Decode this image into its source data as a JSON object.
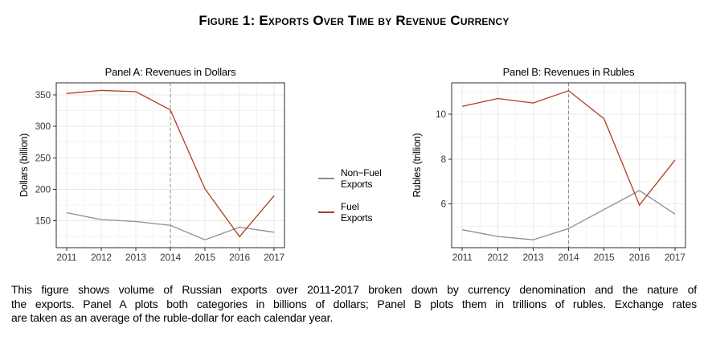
{
  "figure": {
    "title": "Figure 1: Exports Over Time by Revenue Currency"
  },
  "colors": {
    "fuel": "#B13A21",
    "non_fuel": "#82919B",
    "grid_major": "#E8E8E8",
    "grid_minor": "#F4F4F4",
    "vline": "#8C8C8C",
    "panel_border": "#2B2B2B",
    "tick": "#333333"
  },
  "legend": {
    "items": [
      {
        "lines": [
          "Non−Fuel",
          "Exports"
        ],
        "color": "#82919B",
        "series": "Non-Fuel Exports"
      },
      {
        "lines": [
          "Fuel",
          "Exports"
        ],
        "color": "#B13A21",
        "series": "Fuel Exports"
      }
    ]
  },
  "chart_data": [
    {
      "type": "line",
      "title": "Panel A: Revenues in Dollars",
      "xlabel": "",
      "ylabel": "Dollars (billion)",
      "x": [
        2011,
        2012,
        2013,
        2014,
        2015,
        2016,
        2017
      ],
      "xlim": [
        2010.7,
        2017.3
      ],
      "ylim": [
        107.5,
        369
      ],
      "yticks": [
        150,
        200,
        250,
        300,
        350
      ],
      "yminor": [
        125,
        175,
        225,
        275,
        325
      ],
      "vline_x": 2014,
      "vline_style": "dashed",
      "grid": true,
      "legend_position": "right-between-panels",
      "series": [
        {
          "name": "Non-Fuel Exports",
          "color": "#82919B",
          "values": [
            163,
            152,
            149,
            143,
            120,
            140,
            132
          ]
        },
        {
          "name": "Fuel Exports",
          "color": "#B13A21",
          "values": [
            352,
            357,
            355,
            326,
            201,
            125,
            190
          ]
        }
      ]
    },
    {
      "type": "line",
      "title": "Panel B: Revenues in Rubles",
      "xlabel": "",
      "ylabel": "Rubles (trillion)",
      "x": [
        2011,
        2012,
        2013,
        2014,
        2015,
        2016,
        2017
      ],
      "xlim": [
        2010.7,
        2017.3
      ],
      "ylim": [
        4.05,
        11.4
      ],
      "yticks": [
        6,
        8,
        10
      ],
      "yminor": [
        5,
        7,
        9,
        11
      ],
      "vline_x": 2014,
      "vline_style": "dashed",
      "grid": true,
      "legend_position": "shared",
      "series": [
        {
          "name": "Non-Fuel Exports",
          "color": "#82919B",
          "values": [
            4.85,
            4.55,
            4.4,
            4.9,
            5.75,
            6.6,
            5.55
          ]
        },
        {
          "name": "Fuel Exports",
          "color": "#B13A21",
          "values": [
            10.35,
            10.7,
            10.5,
            11.05,
            9.8,
            5.95,
            7.95
          ]
        }
      ]
    }
  ],
  "caption": {
    "lines": [
      "This figure shows volume of Russian exports over 2011-2017 broken down by currency denomination and the nature of",
      "the exports. Panel A plots both categories in billions of dollars; Panel B plots them in trillions of rubles. Exchange rates",
      "are taken as an average of the ruble-dollar for each calendar year."
    ]
  }
}
